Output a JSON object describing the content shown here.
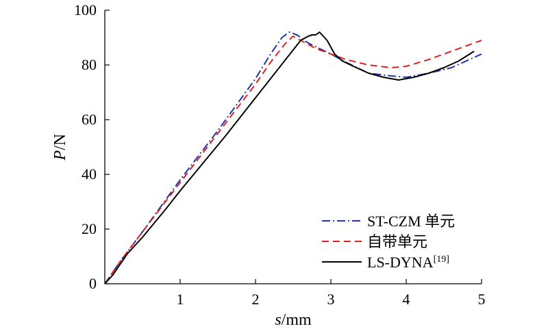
{
  "chart_data": {
    "type": "line",
    "xlabel_var": "s",
    "xlabel_unit": "/mm",
    "ylabel_var": "P",
    "ylabel_unit": "/N",
    "xlim": [
      0,
      5
    ],
    "ylim": [
      0,
      100
    ],
    "xticks": [
      1,
      2,
      3,
      4,
      5
    ],
    "yticks": [
      0,
      20,
      40,
      60,
      80,
      100
    ],
    "grid": false,
    "legend_position": "bottom-right",
    "series": [
      {
        "name": "ST-CZM 单元",
        "color": "#2233aa",
        "dash": "dash-dot",
        "x": [
          0,
          0.2,
          0.5,
          1.0,
          1.5,
          2.0,
          2.2,
          2.35,
          2.45,
          2.55,
          2.7,
          3.0,
          3.2,
          3.5,
          3.8,
          4.0,
          4.3,
          4.6,
          5.0
        ],
        "y": [
          0,
          8,
          19,
          38,
          56,
          75,
          84,
          90,
          92,
          91,
          88,
          84,
          81,
          77,
          76,
          75.5,
          77,
          79,
          84
        ]
      },
      {
        "name": "自带单元",
        "color": "#e02020",
        "dash": "dashed",
        "x": [
          0,
          0.2,
          0.5,
          1.0,
          1.5,
          2.0,
          2.2,
          2.4,
          2.5,
          2.6,
          2.8,
          3.0,
          3.2,
          3.5,
          3.8,
          4.0,
          4.3,
          4.6,
          5.0
        ],
        "y": [
          0,
          8,
          19,
          37,
          55,
          73,
          81,
          88,
          90.5,
          89,
          86,
          84,
          82,
          80,
          79,
          79.5,
          82,
          85,
          89
        ]
      },
      {
        "name": "LS-DYNA",
        "name_sup": "[19]",
        "color": "#000000",
        "dash": "solid",
        "x": [
          0,
          0.1,
          0.2,
          0.3,
          0.5,
          0.8,
          1.0,
          1.3,
          1.6,
          2.0,
          2.4,
          2.6,
          2.7,
          2.75,
          2.8,
          2.85,
          2.95,
          3.05,
          3.15,
          3.3,
          3.5,
          3.7,
          3.9,
          4.1,
          4.3,
          4.5,
          4.7,
          4.9
        ],
        "y": [
          0,
          3,
          7,
          11,
          17,
          27,
          34,
          44,
          54,
          68,
          82,
          89,
          90.5,
          91,
          91,
          92,
          89,
          84,
          81.5,
          79.5,
          77,
          75.5,
          74.5,
          75.5,
          77,
          79,
          81.5,
          85
        ]
      }
    ]
  }
}
